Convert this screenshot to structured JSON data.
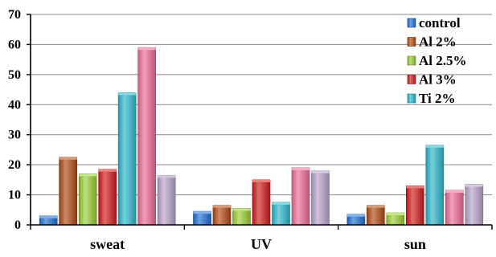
{
  "chart_data": {
    "type": "bar",
    "title": "",
    "xlabel": "",
    "ylabel": "",
    "ylim": [
      0,
      70
    ],
    "yticks": [
      0,
      10,
      20,
      30,
      40,
      50,
      60,
      70
    ],
    "grid": true,
    "legend_position": "top-right",
    "categories": [
      "sweat",
      "UV",
      "sun"
    ],
    "series": [
      {
        "name": "control",
        "color": "#1F6FD6",
        "values": [
          3,
          4.5,
          3.5
        ]
      },
      {
        "name": "Al 2%",
        "color": "#B24A13",
        "values": [
          22.5,
          6.5,
          6.5
        ]
      },
      {
        "name": "Al 2.5%",
        "color": "#9ACD32",
        "values": [
          17,
          5.5,
          4
        ]
      },
      {
        "name": "Al 3%",
        "color": "#D11B1B",
        "values": [
          18.5,
          15,
          13
        ]
      },
      {
        "name": "Ti 2%",
        "color": "#29B8CC",
        "values": [
          44,
          7.5,
          26.5
        ]
      },
      {
        "name": "",
        "color": "#EE6A96",
        "values": [
          59,
          19,
          11.5
        ]
      },
      {
        "name": "",
        "color": "#B7A3C9",
        "values": [
          16.5,
          18,
          13.5
        ]
      }
    ]
  }
}
